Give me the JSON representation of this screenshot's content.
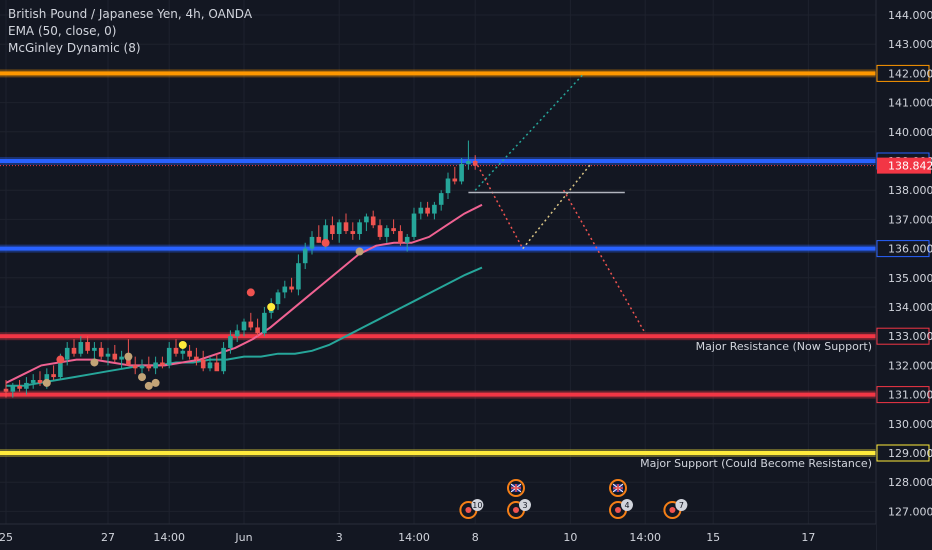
{
  "chart_data": {
    "type": "candlestick",
    "title": "British Pound / Japanese Yen, 4h, OANDA",
    "indicators": [
      "EMA (50, close, 0)",
      "McGinley Dynamic (8)"
    ],
    "ylim": [
      126.6,
      144.5
    ],
    "y_ticks": [
      {
        "value": 144,
        "label": "144.000"
      },
      {
        "value": 143,
        "label": "143.000"
      },
      {
        "value": 142,
        "label": "142.000"
      },
      {
        "value": 141,
        "label": "141.000"
      },
      {
        "value": 140,
        "label": "140.000"
      },
      {
        "value": 139,
        "label": "139.000"
      },
      {
        "value": 138,
        "label": "138.000"
      },
      {
        "value": 137,
        "label": "137.000"
      },
      {
        "value": 136,
        "label": "136.000"
      },
      {
        "value": 135,
        "label": "135.000"
      },
      {
        "value": 134,
        "label": "134.000"
      },
      {
        "value": 133,
        "label": "133.000"
      },
      {
        "value": 132,
        "label": "132.000"
      },
      {
        "value": 131,
        "label": "131.000"
      },
      {
        "value": 130,
        "label": "130.000"
      },
      {
        "value": 129,
        "label": "129.000"
      },
      {
        "value": 128,
        "label": "128.000"
      },
      {
        "value": 127,
        "label": "127.000"
      }
    ],
    "x_ticks": [
      {
        "bar": 0,
        "label": "25"
      },
      {
        "bar": 15,
        "label": "27"
      },
      {
        "bar": 24,
        "label": "14:00"
      },
      {
        "bar": 35,
        "label": "Jun"
      },
      {
        "bar": 49,
        "label": "3"
      },
      {
        "bar": 60,
        "label": "14:00"
      },
      {
        "bar": 69,
        "label": "8"
      },
      {
        "bar": 83,
        "label": "10"
      },
      {
        "bar": 94,
        "label": "14:00"
      },
      {
        "bar": 104,
        "label": "15"
      },
      {
        "bar": 118,
        "label": "17"
      }
    ],
    "last_price": {
      "value": 138.842,
      "label": "138.842"
    },
    "candles": [
      [
        131.2,
        131.5,
        130.9,
        131.1
      ],
      [
        131.1,
        131.4,
        130.9,
        131.3
      ],
      [
        131.3,
        131.5,
        131.1,
        131.2
      ],
      [
        131.2,
        131.6,
        131.0,
        131.4
      ],
      [
        131.4,
        131.7,
        131.2,
        131.5
      ],
      [
        131.5,
        131.8,
        131.3,
        131.4
      ],
      [
        131.4,
        131.9,
        131.2,
        131.7
      ],
      [
        131.7,
        132.0,
        131.5,
        131.6
      ],
      [
        131.6,
        132.4,
        131.5,
        132.2
      ],
      [
        132.2,
        132.8,
        132.0,
        132.6
      ],
      [
        132.6,
        132.9,
        132.3,
        132.4
      ],
      [
        132.4,
        133.0,
        132.3,
        132.8
      ],
      [
        132.8,
        133.0,
        132.4,
        132.5
      ],
      [
        132.5,
        132.8,
        132.2,
        132.6
      ],
      [
        132.6,
        132.8,
        132.2,
        132.3
      ],
      [
        132.3,
        132.6,
        132.0,
        132.4
      ],
      [
        132.4,
        132.7,
        132.1,
        132.2
      ],
      [
        132.2,
        132.5,
        131.9,
        132.3
      ],
      [
        132.3,
        132.9,
        132.1,
        132.0
      ],
      [
        132.0,
        132.3,
        131.7,
        131.9
      ],
      [
        131.9,
        132.2,
        131.7,
        132.0
      ],
      [
        132.0,
        132.3,
        131.8,
        131.9
      ],
      [
        131.9,
        132.3,
        131.7,
        132.1
      ],
      [
        132.1,
        132.3,
        131.9,
        132.0
      ],
      [
        132.0,
        132.8,
        131.9,
        132.6
      ],
      [
        132.6,
        132.9,
        132.3,
        132.4
      ],
      [
        132.4,
        132.7,
        132.2,
        132.5
      ],
      [
        132.5,
        132.7,
        132.2,
        132.3
      ],
      [
        132.3,
        132.6,
        132.0,
        132.2
      ],
      [
        132.2,
        132.5,
        131.8,
        131.9
      ],
      [
        131.9,
        132.3,
        131.8,
        132.1
      ],
      [
        132.1,
        132.4,
        131.9,
        131.8
      ],
      [
        131.8,
        132.8,
        131.7,
        132.6
      ],
      [
        132.6,
        133.2,
        132.4,
        133.0
      ],
      [
        133.0,
        133.4,
        132.8,
        133.2
      ],
      [
        133.2,
        133.6,
        133.0,
        133.5
      ],
      [
        133.5,
        133.8,
        133.2,
        133.3
      ],
      [
        133.3,
        133.6,
        133.0,
        133.1
      ],
      [
        133.1,
        134.0,
        133.0,
        133.8
      ],
      [
        133.8,
        134.3,
        133.6,
        134.1
      ],
      [
        134.1,
        134.6,
        133.9,
        134.5
      ],
      [
        134.5,
        134.9,
        134.3,
        134.7
      ],
      [
        134.7,
        135.0,
        134.5,
        134.6
      ],
      [
        134.6,
        135.8,
        134.4,
        135.5
      ],
      [
        135.5,
        136.2,
        135.3,
        136.0
      ],
      [
        136.0,
        136.6,
        135.8,
        136.4
      ],
      [
        136.4,
        136.8,
        136.2,
        136.2
      ],
      [
        136.2,
        137.0,
        136.0,
        136.8
      ],
      [
        136.8,
        137.1,
        136.3,
        136.5
      ],
      [
        136.5,
        137.0,
        136.2,
        136.9
      ],
      [
        136.9,
        137.2,
        136.5,
        136.6
      ],
      [
        136.6,
        136.9,
        136.3,
        136.5
      ],
      [
        136.5,
        137.0,
        136.3,
        136.9
      ],
      [
        136.9,
        137.2,
        136.6,
        137.1
      ],
      [
        137.1,
        137.3,
        136.7,
        136.8
      ],
      [
        136.8,
        137.0,
        136.3,
        136.4
      ],
      [
        136.4,
        136.8,
        136.2,
        136.7
      ],
      [
        136.7,
        137.0,
        136.5,
        136.6
      ],
      [
        136.6,
        136.8,
        136.1,
        136.2
      ],
      [
        136.2,
        136.5,
        135.9,
        136.4
      ],
      [
        136.4,
        137.4,
        136.3,
        137.2
      ],
      [
        137.2,
        137.6,
        137.0,
        137.4
      ],
      [
        137.4,
        137.6,
        137.1,
        137.2
      ],
      [
        137.2,
        137.6,
        137.0,
        137.5
      ],
      [
        137.5,
        138.0,
        137.3,
        137.9
      ],
      [
        137.9,
        138.6,
        137.7,
        138.4
      ],
      [
        138.4,
        138.8,
        138.2,
        138.3
      ],
      [
        138.3,
        139.1,
        138.2,
        138.9
      ],
      [
        138.9,
        139.7,
        138.7,
        139.0
      ],
      [
        139.0,
        139.2,
        138.7,
        138.84
      ]
    ],
    "series": [
      {
        "values": [
          131.3,
          131.3,
          131.4,
          131.5,
          131.6,
          131.7,
          131.8,
          131.9,
          132.0,
          132.0,
          132.1,
          132.1,
          132.2,
          132.2,
          132.3,
          132.3,
          132.4,
          132.4,
          132.5,
          132.7,
          133.0,
          133.3,
          133.6,
          133.9,
          134.2,
          134.5,
          134.8,
          135.1,
          135.35
        ]
      },
      {
        "values": [
          131.4,
          131.7,
          132.0,
          132.1,
          132.2,
          132.2,
          132.1,
          132.0,
          132.0,
          132.0,
          132.1,
          132.2,
          132.4,
          132.6,
          132.9,
          133.3,
          133.8,
          134.3,
          134.8,
          135.3,
          135.8,
          136.1,
          136.2,
          136.2,
          136.4,
          136.8,
          137.2,
          137.5
        ]
      }
    ],
    "levels": [
      {
        "value": 142.0,
        "color": "#ff9800"
      },
      {
        "value": 139.0,
        "color": "#2962ff"
      },
      {
        "value": 136.0,
        "color": "#2962ff"
      },
      {
        "value": 133.0,
        "color": "#f23645",
        "label": "Major Resistance (Now Support)"
      },
      {
        "value": 131.0,
        "color": "#f23645"
      },
      {
        "value": 129.0,
        "color": "#ffeb3b",
        "label": "Major Support (Could Become Resistance)"
      }
    ],
    "markers": [
      {
        "bar": 8,
        "value": 132.2,
        "color": "#ef5350"
      },
      {
        "bar": 6,
        "value": 131.4,
        "color": "#c2a477"
      },
      {
        "bar": 13,
        "value": 132.1,
        "color": "#c2a477"
      },
      {
        "bar": 18,
        "value": 132.3,
        "color": "#c2a477"
      },
      {
        "bar": 20,
        "value": 131.6,
        "color": "#c2a477"
      },
      {
        "bar": 21,
        "value": 131.3,
        "color": "#c2a477"
      },
      {
        "bar": 22,
        "value": 131.4,
        "color": "#c2a477"
      },
      {
        "bar": 26,
        "value": 132.7,
        "color": "#ffeb3b"
      },
      {
        "bar": 36,
        "value": 134.5,
        "color": "#ef5350"
      },
      {
        "bar": 39,
        "value": 134.0,
        "color": "#ffeb3b"
      },
      {
        "bar": 47,
        "value": 136.2,
        "color": "#ef5350"
      },
      {
        "bar": 52,
        "value": 135.9,
        "color": "#c2a477"
      }
    ],
    "projections": [
      {
        "color": "#26a69a",
        "points": [
          [
            69,
            138.0
          ],
          [
            85,
            142.0
          ]
        ]
      },
      {
        "color": "#ef5350",
        "points": [
          [
            69,
            139.0
          ],
          [
            76,
            136.0
          ]
        ]
      },
      {
        "color": "#dbc686",
        "points": [
          [
            76,
            136.0
          ],
          [
            86,
            138.9
          ]
        ]
      },
      {
        "color": "#ef5350",
        "points": [
          [
            82,
            138.0
          ],
          [
            94,
            133.1
          ]
        ]
      }
    ],
    "horizontal_ray": {
      "value": 137.92,
      "from_bar": 68,
      "to_bar": 91
    },
    "events": [
      {
        "bar": 68,
        "flag": false,
        "count": "10"
      },
      {
        "bar": 75,
        "flag": true,
        "count": "3"
      },
      {
        "bar": 90,
        "flag": true,
        "count": "4"
      },
      {
        "bar": 98,
        "flag": false,
        "count": "7"
      }
    ]
  }
}
